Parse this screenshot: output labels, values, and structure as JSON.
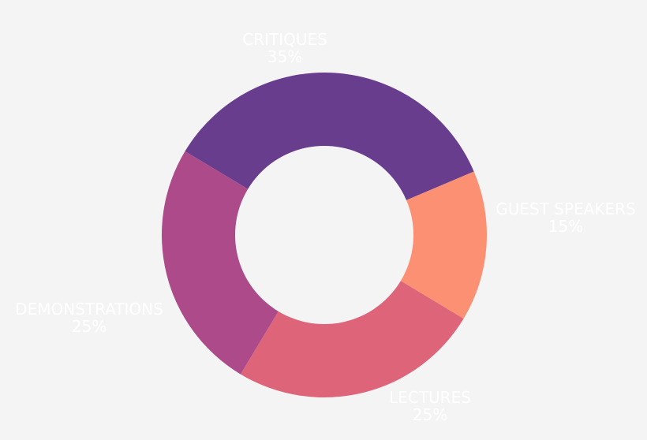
{
  "chart_data": {
    "type": "pie",
    "donut": true,
    "categories": [
      "CRITIQUES",
      "GUEST SPEAKERS",
      "LECTURES",
      "DEMONSTRATIONS"
    ],
    "values": [
      35,
      15,
      25,
      25
    ],
    "value_labels": [
      "35%",
      "15%",
      "25%",
      "25%"
    ],
    "colors": [
      "#683d8e",
      "#fc9072",
      "#de6479",
      "#ad4a89"
    ],
    "label_color": "#ffffff",
    "background": "#f5f4f5",
    "legend": "none"
  }
}
